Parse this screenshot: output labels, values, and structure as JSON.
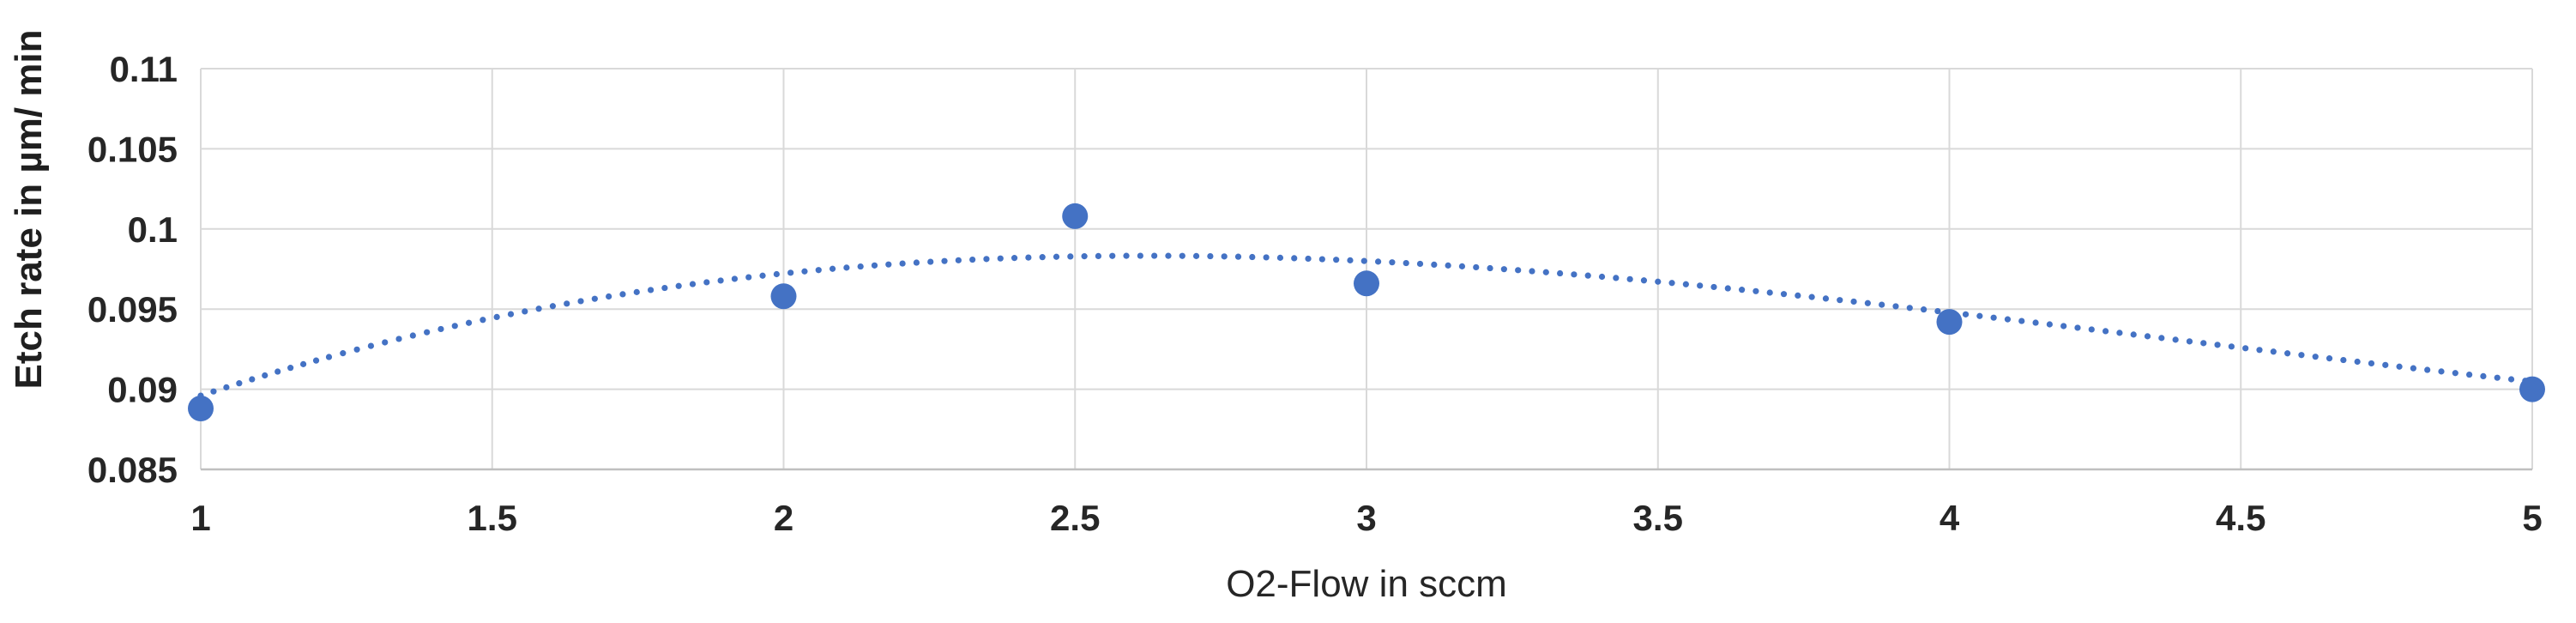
{
  "chart_data": {
    "type": "scatter",
    "x": [
      1,
      2,
      2.5,
      3,
      4,
      5
    ],
    "y": [
      0.0888,
      0.0958,
      0.1008,
      0.0966,
      0.0942,
      0.09
    ],
    "series_name": "Etch rate",
    "xlabel": "O2-Flow in sccm",
    "ylabel": "Etch rate in µm/ min",
    "xlim": [
      1,
      5
    ],
    "ylim": [
      0.085,
      0.11
    ],
    "xtick_values": [
      1,
      1.5,
      2,
      2.5,
      3,
      3.5,
      4,
      4.5,
      5
    ],
    "xticks": [
      "1",
      "1.5",
      "2",
      "2.5",
      "3",
      "3.5",
      "4",
      "4.5",
      "5"
    ],
    "ytick_values": [
      0.085,
      0.09,
      0.095,
      0.1,
      0.105,
      0.11
    ],
    "yticks": [
      "0.085",
      "0.09",
      "0.095",
      "0.1",
      "0.105",
      "0.11"
    ],
    "grid": true,
    "legend": false,
    "trendline": {
      "type": "polynomial",
      "order": 3,
      "coefficients": [
        0.000479,
        -0.0063,
        0.023171,
        0.07225
      ],
      "x_range": [
        1,
        5
      ],
      "style": "dotted",
      "peak": {
        "x": 2.63,
        "y": 0.0983
      }
    },
    "colors": {
      "series": "#4472C4",
      "gridline": "#D9D9D9",
      "axis_line": "#BFBFBF",
      "text": "#262626"
    }
  }
}
